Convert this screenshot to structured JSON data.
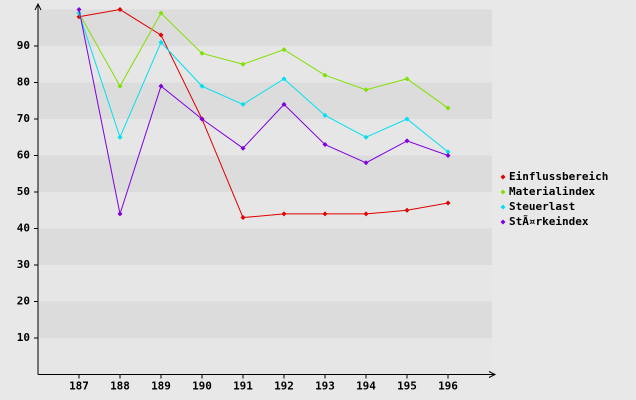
{
  "chart_data": {
    "type": "line",
    "categories": [
      "187",
      "188",
      "189",
      "190",
      "191",
      "192",
      "193",
      "194",
      "195",
      "196"
    ],
    "series": [
      {
        "name": "Einflussbereich",
        "color": "#e00000",
        "values": [
          98,
          100,
          93,
          70,
          43,
          44,
          44,
          44,
          45,
          47
        ]
      },
      {
        "name": "Materialindex",
        "color": "#80e000",
        "values": [
          99,
          79,
          99,
          88,
          85,
          89,
          82,
          78,
          81,
          73
        ]
      },
      {
        "name": "Steuerlast",
        "color": "#00e0f0",
        "values": [
          99,
          65,
          91,
          79,
          74,
          81,
          71,
          65,
          70,
          61
        ]
      },
      {
        "name": "StÃ¤rkeindex",
        "color": "#8000e0",
        "values": [
          100,
          44,
          79,
          70,
          62,
          74,
          63,
          58,
          64,
          60
        ]
      }
    ],
    "ylim": [
      0,
      100
    ],
    "yticks": [
      10,
      20,
      30,
      40,
      50,
      60,
      70,
      80,
      90
    ],
    "grid": true,
    "legend": "right"
  }
}
